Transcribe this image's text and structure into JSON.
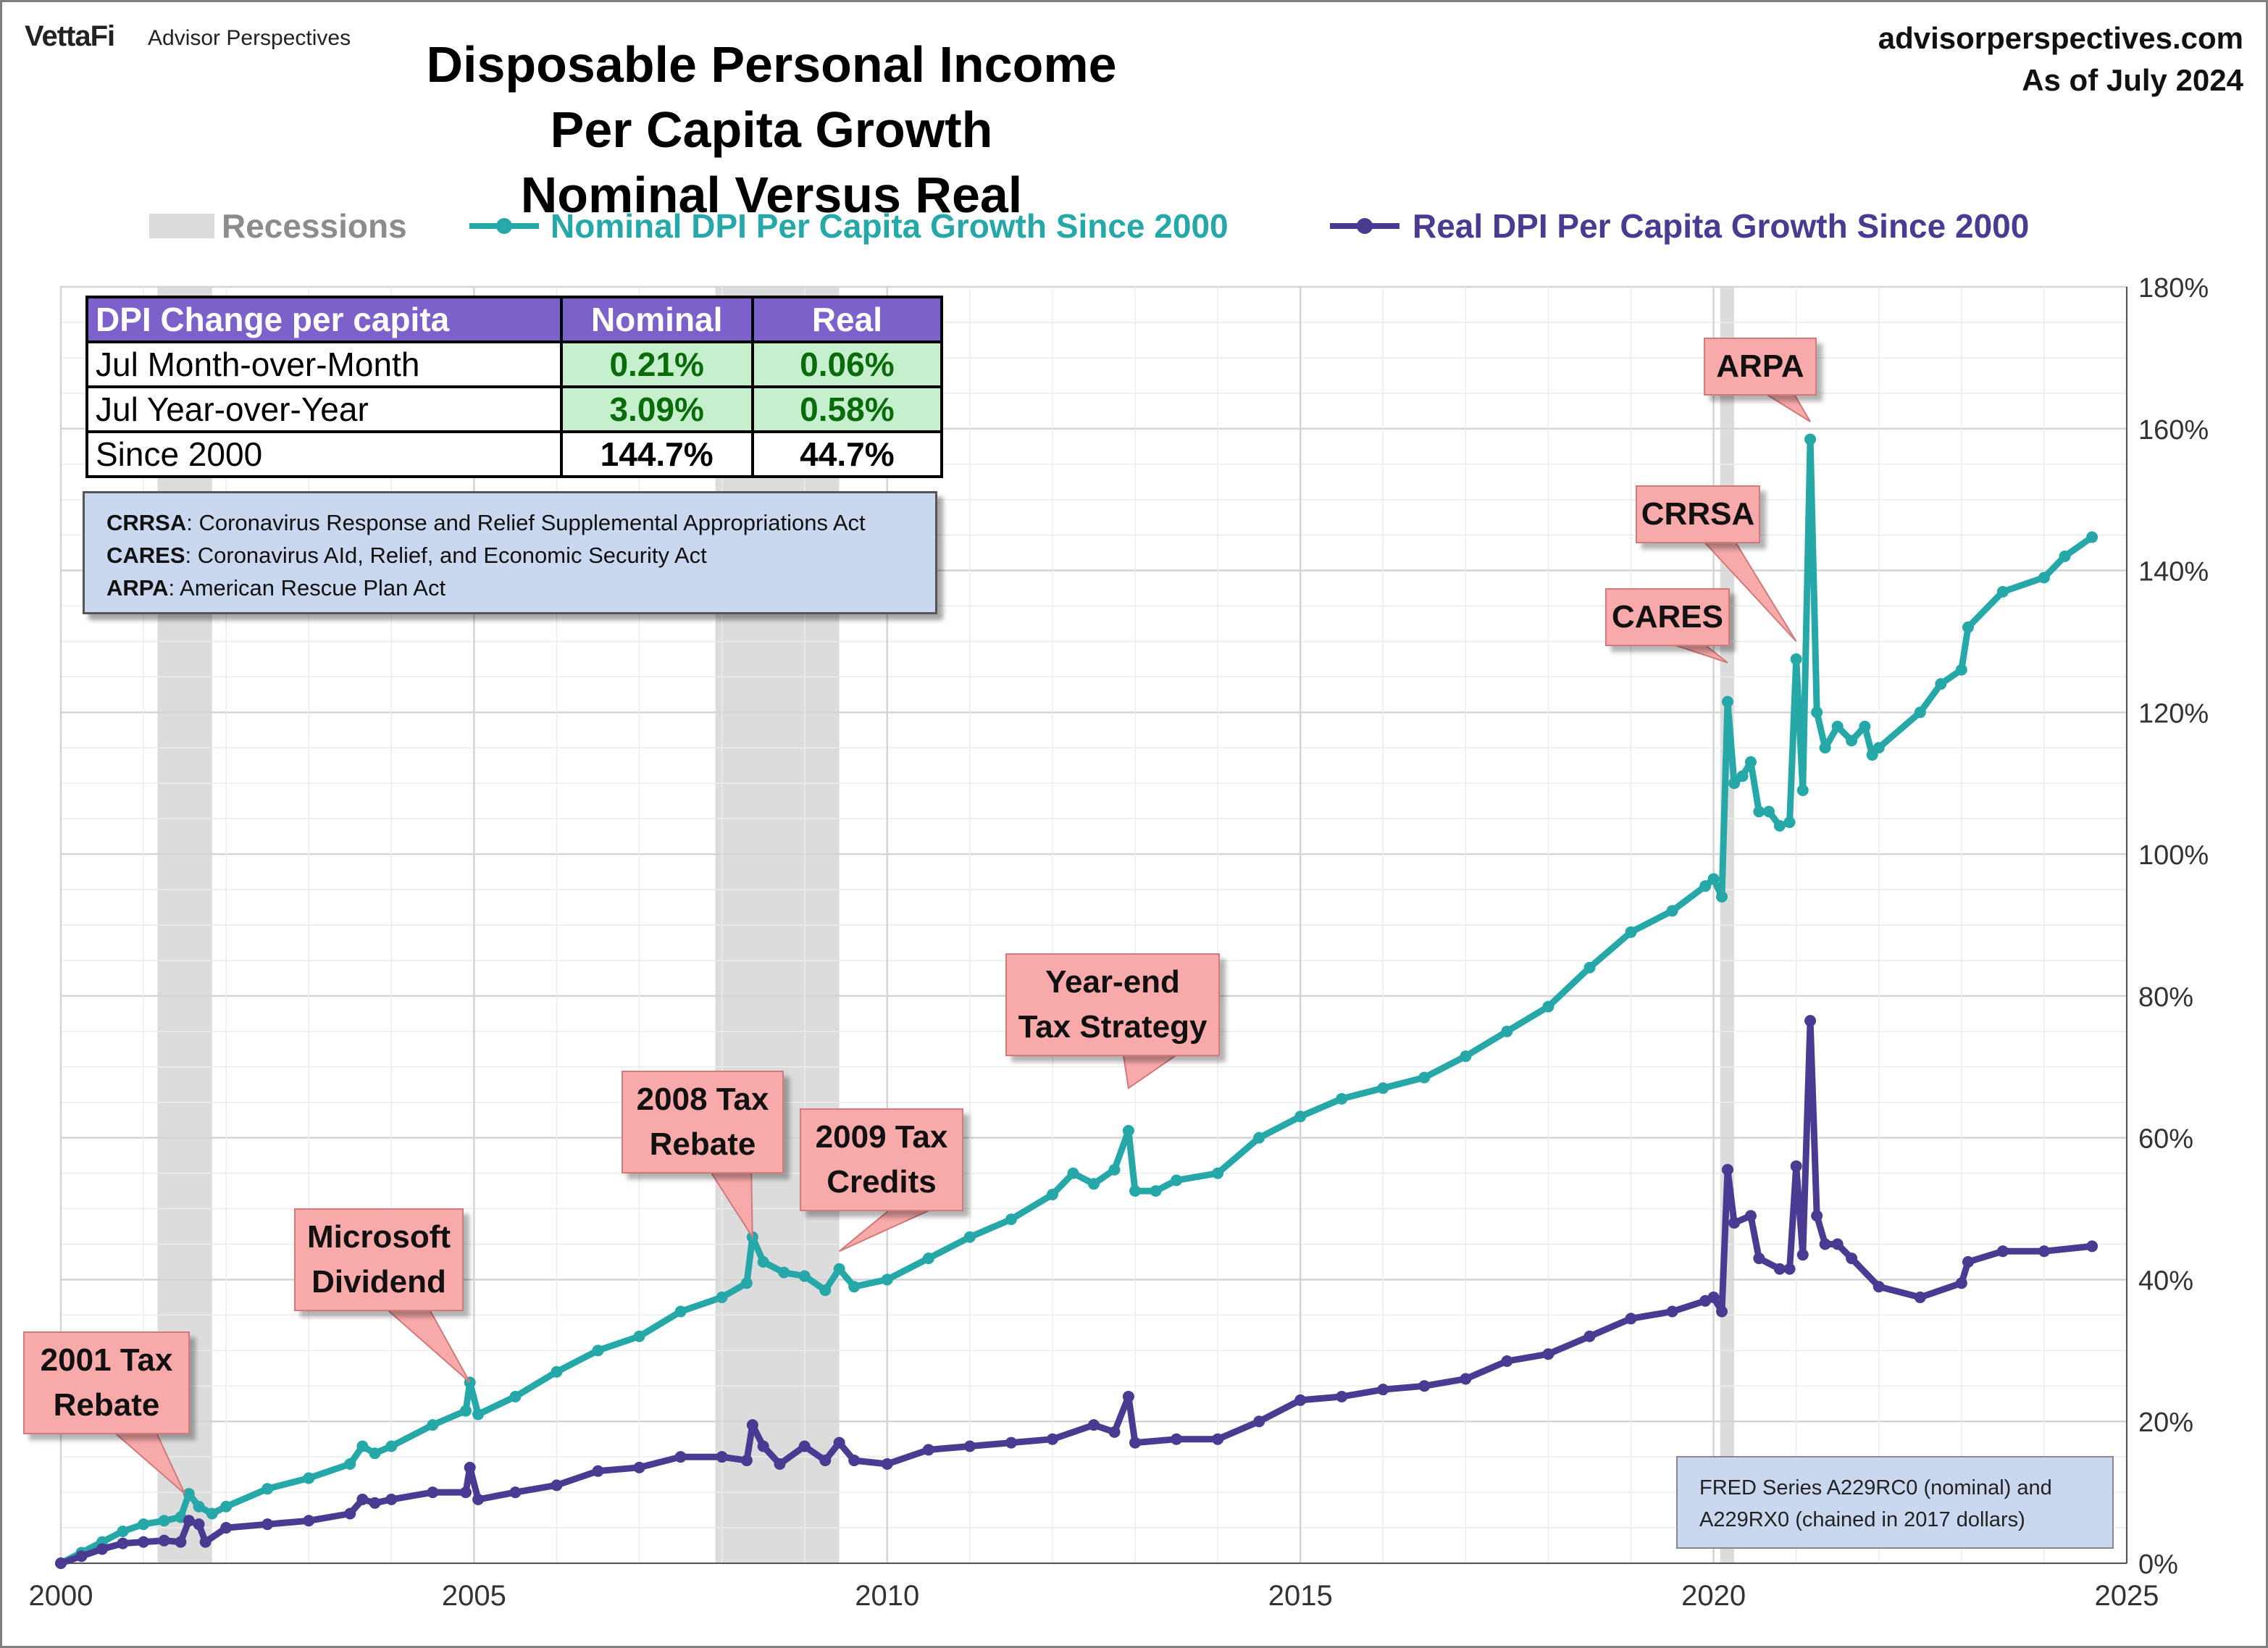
{
  "header": {
    "brand": "VettaFi",
    "brand_sub": "Advisor Perspectives",
    "site": "advisorperspectives.com",
    "as_of": "As of July 2024"
  },
  "colors": {
    "nominal": "#26a8a8",
    "real": "#4a3a92",
    "recession": "#dcdcdc",
    "callout_fill": "#f8a9a9",
    "table_header": "#7b61c9",
    "green_cell": "#c6efce"
  },
  "table": {
    "headers": [
      "DPI Change per capita",
      "Nominal",
      "Real"
    ],
    "rows": [
      {
        "label": "Jul Month-over-Month",
        "nominal": "0.21%",
        "real": "0.06%"
      },
      {
        "label": "Jul Year-over-Year",
        "nominal": "3.09%",
        "real": "0.58%"
      },
      {
        "label": "Since 2000",
        "nominal": "144.7%",
        "real": "44.7%"
      }
    ]
  },
  "definitions": [
    {
      "abbr": "CRRSA",
      "text": ": Coronavirus Response and Relief Supplemental Appropriations Act"
    },
    {
      "abbr": "CARES",
      "text": ": Coronavirus AId, Relief, and Economic Security Act"
    },
    {
      "abbr": "ARPA",
      "text": ": American Rescue Plan Act"
    }
  ],
  "source_note": [
    "FRED Series A229RC0 (nominal) and",
    "A229RX0 (chained in 2017 dollars)"
  ],
  "chart_data": {
    "type": "line",
    "title": "Disposable Personal Income Per Capita Growth",
    "subtitle": "Nominal Versus Real",
    "xlim": [
      2000,
      2025
    ],
    "ylim": [
      0,
      180
    ],
    "x_ticks": [
      2000,
      2005,
      2010,
      2015,
      2020,
      2025
    ],
    "y_ticks": [
      0,
      20,
      40,
      60,
      80,
      100,
      120,
      140,
      160,
      180
    ],
    "y_tick_labels": [
      "0%",
      "20%",
      "40%",
      "60%",
      "80%",
      "100%",
      "120%",
      "140%",
      "160%",
      "180%"
    ],
    "y_axis_side": "right",
    "grid": true,
    "legend": {
      "placement": "top",
      "recessions_label": "Recessions"
    },
    "recessions": [
      [
        2001.17,
        2001.83
      ],
      [
        2007.92,
        2009.42
      ],
      [
        2020.08,
        2020.25
      ]
    ],
    "series": [
      {
        "name": "Nominal DPI Per Capita Growth Since 2000",
        "color": "#26a8a8",
        "points": [
          [
            2000.0,
            0
          ],
          [
            2000.25,
            1.5
          ],
          [
            2000.5,
            3
          ],
          [
            2000.75,
            4.5
          ],
          [
            2001.0,
            5.5
          ],
          [
            2001.25,
            6
          ],
          [
            2001.45,
            6.5
          ],
          [
            2001.55,
            9.8
          ],
          [
            2001.67,
            8
          ],
          [
            2001.83,
            7
          ],
          [
            2002.0,
            8
          ],
          [
            2002.5,
            10.5
          ],
          [
            2003.0,
            12
          ],
          [
            2003.5,
            14
          ],
          [
            2003.65,
            16.5
          ],
          [
            2003.8,
            15.5
          ],
          [
            2004.0,
            16.5
          ],
          [
            2004.5,
            19.5
          ],
          [
            2004.9,
            21.5
          ],
          [
            2004.95,
            25.5
          ],
          [
            2005.05,
            21
          ],
          [
            2005.5,
            23.5
          ],
          [
            2006.0,
            27
          ],
          [
            2006.5,
            30
          ],
          [
            2007.0,
            32
          ],
          [
            2007.5,
            35.5
          ],
          [
            2008.0,
            37.5
          ],
          [
            2008.3,
            39.5
          ],
          [
            2008.37,
            46
          ],
          [
            2008.5,
            42.5
          ],
          [
            2008.75,
            41
          ],
          [
            2009.0,
            40.5
          ],
          [
            2009.25,
            38.5
          ],
          [
            2009.42,
            41.5
          ],
          [
            2009.6,
            39
          ],
          [
            2010.0,
            40
          ],
          [
            2010.5,
            43
          ],
          [
            2011.0,
            46
          ],
          [
            2011.5,
            48.5
          ],
          [
            2012.0,
            52
          ],
          [
            2012.25,
            55
          ],
          [
            2012.5,
            53.5
          ],
          [
            2012.75,
            55.5
          ],
          [
            2012.92,
            61
          ],
          [
            2013.0,
            52.5
          ],
          [
            2013.25,
            52.5
          ],
          [
            2013.5,
            54
          ],
          [
            2014.0,
            55
          ],
          [
            2014.5,
            60
          ],
          [
            2015.0,
            63
          ],
          [
            2015.5,
            65.5
          ],
          [
            2016.0,
            67
          ],
          [
            2016.5,
            68.5
          ],
          [
            2017.0,
            71.5
          ],
          [
            2017.5,
            75
          ],
          [
            2018.0,
            78.5
          ],
          [
            2018.5,
            84
          ],
          [
            2019.0,
            89
          ],
          [
            2019.5,
            92
          ],
          [
            2019.9,
            95.5
          ],
          [
            2020.0,
            96.5
          ],
          [
            2020.1,
            94
          ],
          [
            2020.17,
            121.5
          ],
          [
            2020.25,
            110
          ],
          [
            2020.35,
            111
          ],
          [
            2020.45,
            113
          ],
          [
            2020.55,
            106
          ],
          [
            2020.67,
            106
          ],
          [
            2020.8,
            104
          ],
          [
            2020.92,
            104.5
          ],
          [
            2021.0,
            127.5
          ],
          [
            2021.08,
            109
          ],
          [
            2021.17,
            158.5
          ],
          [
            2021.25,
            120
          ],
          [
            2021.35,
            115
          ],
          [
            2021.5,
            118
          ],
          [
            2021.67,
            116
          ],
          [
            2021.83,
            118
          ],
          [
            2021.92,
            114
          ],
          [
            2022.0,
            115
          ],
          [
            2022.5,
            120
          ],
          [
            2022.75,
            124
          ],
          [
            2023.0,
            126
          ],
          [
            2023.08,
            132
          ],
          [
            2023.5,
            137
          ],
          [
            2024.0,
            139
          ],
          [
            2024.25,
            142
          ],
          [
            2024.58,
            144.7
          ]
        ]
      },
      {
        "name": "Real DPI Per Capita Growth Since 2000",
        "color": "#4a3a92",
        "points": [
          [
            2000.0,
            0
          ],
          [
            2000.25,
            1
          ],
          [
            2000.5,
            2
          ],
          [
            2000.75,
            2.8
          ],
          [
            2001.0,
            3
          ],
          [
            2001.25,
            3.2
          ],
          [
            2001.45,
            3
          ],
          [
            2001.55,
            6
          ],
          [
            2001.67,
            5.5
          ],
          [
            2001.75,
            3
          ],
          [
            2002.0,
            5
          ],
          [
            2002.5,
            5.5
          ],
          [
            2003.0,
            6
          ],
          [
            2003.5,
            7
          ],
          [
            2003.65,
            9
          ],
          [
            2003.8,
            8.5
          ],
          [
            2004.0,
            9
          ],
          [
            2004.5,
            10
          ],
          [
            2004.9,
            10
          ],
          [
            2004.95,
            13.5
          ],
          [
            2005.05,
            9
          ],
          [
            2005.5,
            10
          ],
          [
            2006.0,
            11
          ],
          [
            2006.5,
            13
          ],
          [
            2007.0,
            13.5
          ],
          [
            2007.5,
            15
          ],
          [
            2008.0,
            15
          ],
          [
            2008.3,
            14.5
          ],
          [
            2008.37,
            19.5
          ],
          [
            2008.5,
            16.5
          ],
          [
            2008.7,
            14
          ],
          [
            2009.0,
            16.5
          ],
          [
            2009.25,
            14.5
          ],
          [
            2009.42,
            17
          ],
          [
            2009.6,
            14.5
          ],
          [
            2010.0,
            14
          ],
          [
            2010.5,
            16
          ],
          [
            2011.0,
            16.5
          ],
          [
            2011.5,
            17
          ],
          [
            2012.0,
            17.5
          ],
          [
            2012.5,
            19.5
          ],
          [
            2012.75,
            18.5
          ],
          [
            2012.92,
            23.5
          ],
          [
            2013.0,
            17
          ],
          [
            2013.5,
            17.5
          ],
          [
            2014.0,
            17.5
          ],
          [
            2014.5,
            20
          ],
          [
            2015.0,
            23
          ],
          [
            2015.5,
            23.5
          ],
          [
            2016.0,
            24.5
          ],
          [
            2016.5,
            25
          ],
          [
            2017.0,
            26
          ],
          [
            2017.5,
            28.5
          ],
          [
            2018.0,
            29.5
          ],
          [
            2018.5,
            32
          ],
          [
            2019.0,
            34.5
          ],
          [
            2019.5,
            35.5
          ],
          [
            2019.9,
            37
          ],
          [
            2020.0,
            37.5
          ],
          [
            2020.1,
            35.5
          ],
          [
            2020.17,
            55.5
          ],
          [
            2020.25,
            48
          ],
          [
            2020.45,
            49
          ],
          [
            2020.55,
            43
          ],
          [
            2020.8,
            41.5
          ],
          [
            2020.92,
            41.5
          ],
          [
            2021.0,
            56
          ],
          [
            2021.08,
            43.5
          ],
          [
            2021.17,
            76.5
          ],
          [
            2021.25,
            49
          ],
          [
            2021.35,
            45
          ],
          [
            2021.5,
            45
          ],
          [
            2021.67,
            43
          ],
          [
            2022.0,
            39
          ],
          [
            2022.5,
            37.5
          ],
          [
            2023.0,
            39.5
          ],
          [
            2023.08,
            42.5
          ],
          [
            2023.5,
            44
          ],
          [
            2024.0,
            44
          ],
          [
            2024.58,
            44.7
          ]
        ]
      }
    ],
    "callouts": [
      {
        "lines": [
          "2001 Tax",
          "Rebate"
        ],
        "target": [
          2001.5,
          9.8
        ]
      },
      {
        "lines": [
          "Microsoft",
          "Dividend"
        ],
        "target": [
          2004.95,
          25.5
        ]
      },
      {
        "lines": [
          "2008 Tax",
          "Rebate"
        ],
        "target": [
          2008.37,
          46
        ]
      },
      {
        "lines": [
          "2009 Tax",
          "Credits"
        ],
        "target": [
          2009.42,
          44
        ]
      },
      {
        "lines": [
          "Year-end",
          "Tax Strategy"
        ],
        "target": [
          2012.92,
          67
        ]
      },
      {
        "lines": [
          "CARES"
        ],
        "target": [
          2020.17,
          127
        ]
      },
      {
        "lines": [
          "CRRSA"
        ],
        "target": [
          2021.0,
          130
        ]
      },
      {
        "lines": [
          "ARPA"
        ],
        "target": [
          2021.17,
          161
        ]
      }
    ]
  }
}
